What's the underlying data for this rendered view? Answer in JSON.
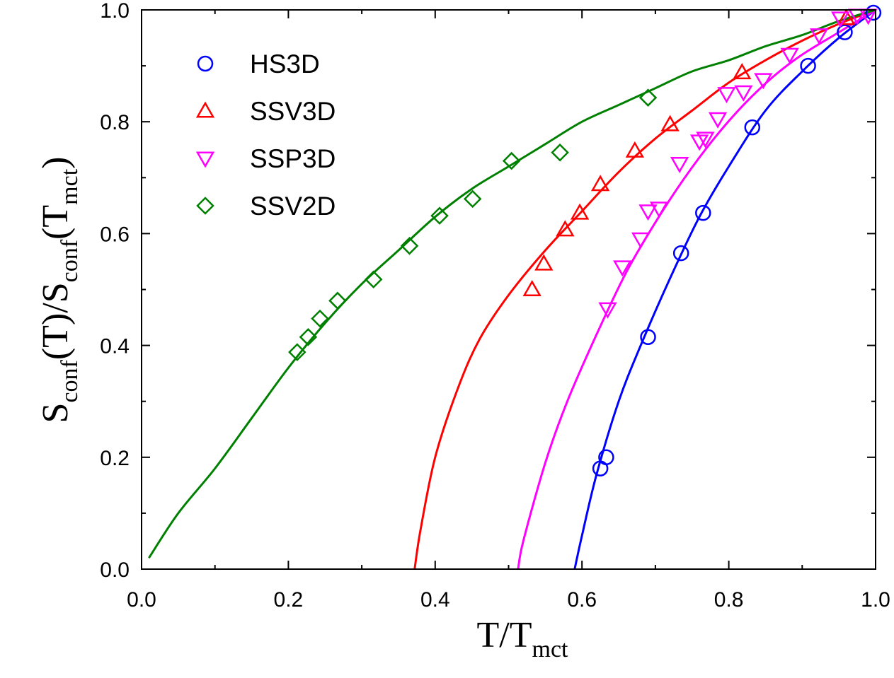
{
  "chart_data": {
    "type": "scatter",
    "title": "",
    "xlabel": {
      "main": "T/T",
      "sub": "mct"
    },
    "ylabel": {
      "p1": "S",
      "s1": "conf",
      "p2": "(T)/S",
      "s2": "conf",
      "p3": "(T",
      "s3": "mct",
      "p4": ")"
    },
    "xlim": [
      0.0,
      1.0
    ],
    "ylim": [
      0.0,
      1.0
    ],
    "x_ticks": [
      "0.0",
      "0.2",
      "0.4",
      "0.6",
      "0.8",
      "1.0"
    ],
    "y_ticks": [
      "0.0",
      "0.2",
      "0.4",
      "0.6",
      "0.8",
      "1.0"
    ],
    "grid": false,
    "legend_position": "top-left",
    "series": [
      {
        "name": "HS3D",
        "marker": "circle",
        "color": "#0000ff",
        "points": [
          [
            0.625,
            0.18
          ],
          [
            0.633,
            0.2
          ],
          [
            0.69,
            0.415
          ],
          [
            0.735,
            0.565
          ],
          [
            0.765,
            0.637
          ],
          [
            0.832,
            0.79
          ],
          [
            0.908,
            0.9
          ],
          [
            0.958,
            0.96
          ],
          [
            0.997,
            0.995
          ]
        ],
        "fit": [
          [
            0.59,
            0.0
          ],
          [
            0.6,
            0.06
          ],
          [
            0.62,
            0.17
          ],
          [
            0.65,
            0.3
          ],
          [
            0.68,
            0.4
          ],
          [
            0.72,
            0.52
          ],
          [
            0.76,
            0.63
          ],
          [
            0.8,
            0.72
          ],
          [
            0.85,
            0.82
          ],
          [
            0.9,
            0.89
          ],
          [
            0.95,
            0.95
          ],
          [
            1.0,
            1.0
          ]
        ]
      },
      {
        "name": "SSV3D",
        "marker": "triangle-up",
        "color": "#ff0000",
        "points": [
          [
            0.532,
            0.5
          ],
          [
            0.548,
            0.546
          ],
          [
            0.577,
            0.607
          ],
          [
            0.597,
            0.637
          ],
          [
            0.625,
            0.688
          ],
          [
            0.672,
            0.748
          ],
          [
            0.72,
            0.795
          ],
          [
            0.818,
            0.888
          ],
          [
            0.96,
            0.985
          ]
        ],
        "fit": [
          [
            0.372,
            0.0
          ],
          [
            0.38,
            0.07
          ],
          [
            0.4,
            0.2
          ],
          [
            0.43,
            0.32
          ],
          [
            0.46,
            0.41
          ],
          [
            0.5,
            0.49
          ],
          [
            0.55,
            0.57
          ],
          [
            0.6,
            0.64
          ],
          [
            0.65,
            0.71
          ],
          [
            0.7,
            0.77
          ],
          [
            0.75,
            0.82
          ],
          [
            0.8,
            0.87
          ],
          [
            0.85,
            0.91
          ],
          [
            0.9,
            0.945
          ],
          [
            0.95,
            0.975
          ],
          [
            1.0,
            1.0
          ]
        ]
      },
      {
        "name": "SSP3D",
        "marker": "triangle-down",
        "color": "#ff00ff",
        "points": [
          [
            0.635,
            0.465
          ],
          [
            0.655,
            0.54
          ],
          [
            0.68,
            0.59
          ],
          [
            0.69,
            0.64
          ],
          [
            0.705,
            0.645
          ],
          [
            0.733,
            0.725
          ],
          [
            0.76,
            0.765
          ],
          [
            0.768,
            0.77
          ],
          [
            0.785,
            0.805
          ],
          [
            0.797,
            0.85
          ],
          [
            0.82,
            0.853
          ],
          [
            0.847,
            0.875
          ],
          [
            0.883,
            0.92
          ],
          [
            0.923,
            0.955
          ],
          [
            0.952,
            0.985
          ],
          [
            0.975,
            0.99
          ],
          [
            0.99,
            0.99
          ]
        ],
        "fit": [
          [
            0.513,
            0.0
          ],
          [
            0.52,
            0.05
          ],
          [
            0.55,
            0.19
          ],
          [
            0.58,
            0.3
          ],
          [
            0.62,
            0.42
          ],
          [
            0.66,
            0.53
          ],
          [
            0.7,
            0.62
          ],
          [
            0.74,
            0.7
          ],
          [
            0.78,
            0.77
          ],
          [
            0.82,
            0.83
          ],
          [
            0.86,
            0.88
          ],
          [
            0.9,
            0.92
          ],
          [
            0.95,
            0.96
          ],
          [
            1.0,
            1.0
          ]
        ]
      },
      {
        "name": "SSV2D",
        "marker": "diamond",
        "color": "#008000",
        "points": [
          [
            0.212,
            0.388
          ],
          [
            0.227,
            0.415
          ],
          [
            0.243,
            0.448
          ],
          [
            0.267,
            0.48
          ],
          [
            0.316,
            0.518
          ],
          [
            0.365,
            0.578
          ],
          [
            0.406,
            0.632
          ],
          [
            0.451,
            0.662
          ],
          [
            0.504,
            0.73
          ],
          [
            0.57,
            0.745
          ],
          [
            0.69,
            0.843
          ]
        ],
        "fit": [
          [
            0.01,
            0.02
          ],
          [
            0.05,
            0.1
          ],
          [
            0.1,
            0.18
          ],
          [
            0.15,
            0.27
          ],
          [
            0.2,
            0.36
          ],
          [
            0.25,
            0.44
          ],
          [
            0.3,
            0.51
          ],
          [
            0.35,
            0.57
          ],
          [
            0.4,
            0.63
          ],
          [
            0.45,
            0.68
          ],
          [
            0.5,
            0.72
          ],
          [
            0.55,
            0.76
          ],
          [
            0.6,
            0.8
          ],
          [
            0.65,
            0.83
          ],
          [
            0.7,
            0.86
          ],
          [
            0.75,
            0.89
          ],
          [
            0.8,
            0.91
          ],
          [
            0.85,
            0.935
          ],
          [
            0.9,
            0.955
          ],
          [
            0.95,
            0.98
          ],
          [
            1.0,
            1.0
          ]
        ]
      }
    ]
  }
}
